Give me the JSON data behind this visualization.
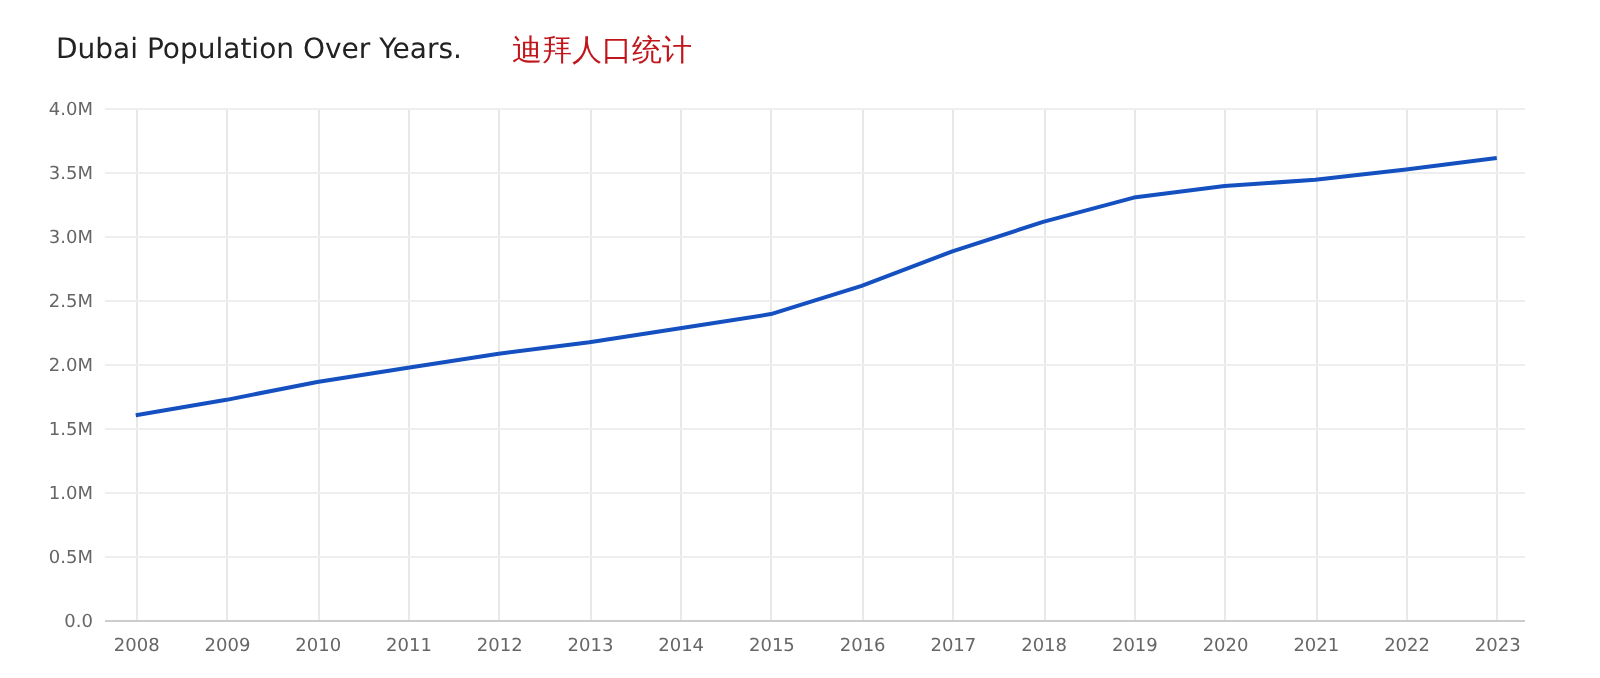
{
  "chart_data": {
    "type": "line",
    "title": "Dubai Population Over Years.",
    "subtitle": "迪拜人口统计",
    "x": [
      2008,
      2009,
      2010,
      2011,
      2012,
      2013,
      2014,
      2015,
      2016,
      2017,
      2018,
      2019,
      2020,
      2021,
      2022,
      2023
    ],
    "xlim": [
      2007.65,
      2023.3
    ],
    "xticks": [
      2008,
      2009,
      2010,
      2011,
      2012,
      2013,
      2014,
      2015,
      2016,
      2017,
      2018,
      2019,
      2020,
      2021,
      2022,
      2023
    ],
    "series": [
      {
        "color": "#1550c0",
        "values": [
          1.6,
          1.72,
          1.86,
          1.97,
          2.08,
          2.17,
          2.28,
          2.39,
          2.61,
          2.88,
          3.11,
          3.3,
          3.39,
          3.44,
          3.52,
          3.61
        ]
      }
    ],
    "ylim": [
      0,
      4
    ],
    "yticks": [
      {
        "value": 0,
        "label": "0.0"
      },
      {
        "value": 0.5,
        "label": "0.5M"
      },
      {
        "value": 1,
        "label": "1.0M"
      },
      {
        "value": 1.5,
        "label": "1.5M"
      },
      {
        "value": 2,
        "label": "2.0M"
      },
      {
        "value": 2.5,
        "label": "2.5M"
      },
      {
        "value": 3,
        "label": "3.0M"
      },
      {
        "value": 3.5,
        "label": "3.5M"
      },
      {
        "value": 4,
        "label": "4.0M"
      }
    ],
    "grid": true,
    "marker": "none",
    "line_style": "solid"
  }
}
